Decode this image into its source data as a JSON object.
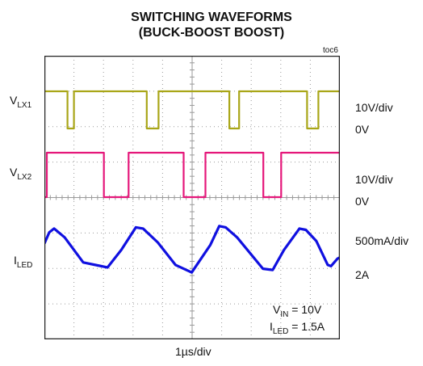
{
  "title_line1": "SWITCHING WAVEFORMS",
  "title_line2": "(BUCK-BOOST BOOST)",
  "figure_ref": "toc6",
  "time_scale": "1µs/div",
  "colors": {
    "vlx1": "#a9a618",
    "vlx2": "#e5177a",
    "iled": "#1010e0",
    "grid": "#9a9a9a",
    "frame": "#222222"
  },
  "chart_data": {
    "type": "line",
    "grid": true,
    "divisions": {
      "x": 10,
      "y": 8
    },
    "xlabel": "1µs/div",
    "series": [
      {
        "name": "VLX1",
        "scale": "10V/div",
        "zero": "0V",
        "points": [
          [
            0.0,
            10
          ],
          [
            2.85,
            10
          ],
          [
            2.85,
            0
          ],
          [
            3.65,
            0
          ],
          [
            3.65,
            10
          ],
          [
            12.65,
            10
          ],
          [
            12.65,
            0
          ],
          [
            14.1,
            0
          ],
          [
            14.1,
            10
          ],
          [
            22.85,
            10
          ],
          [
            22.85,
            0
          ],
          [
            24.05,
            0
          ],
          [
            24.05,
            10
          ],
          [
            32.45,
            10
          ],
          [
            32.45,
            0
          ],
          [
            33.85,
            0
          ],
          [
            33.85,
            10
          ],
          [
            36.5,
            10
          ]
        ]
      },
      {
        "name": "VLX2",
        "scale": "10V/div",
        "zero": "0V",
        "points": [
          [
            0.0,
            0
          ],
          [
            0.3,
            0
          ],
          [
            0.3,
            10
          ],
          [
            7.35,
            10
          ],
          [
            7.35,
            0
          ],
          [
            10.4,
            0
          ],
          [
            10.4,
            10
          ],
          [
            17.2,
            10
          ],
          [
            17.2,
            0
          ],
          [
            19.9,
            0
          ],
          [
            19.9,
            10
          ],
          [
            27.05,
            10
          ],
          [
            27.05,
            0
          ],
          [
            29.25,
            0
          ],
          [
            29.25,
            10
          ],
          [
            36.5,
            10
          ]
        ]
      },
      {
        "name": "ILED",
        "scale": "500mA/div",
        "zero": "2A",
        "points": [
          [
            0.0,
            2.95
          ],
          [
            0.6,
            3.4
          ],
          [
            1.2,
            3.55
          ],
          [
            2.5,
            3.2
          ],
          [
            4.8,
            2.2
          ],
          [
            7.8,
            2.0
          ],
          [
            9.5,
            2.7
          ],
          [
            11.3,
            3.6
          ],
          [
            12.2,
            3.55
          ],
          [
            14.0,
            3.0
          ],
          [
            16.2,
            2.1
          ],
          [
            18.2,
            1.8
          ],
          [
            20.5,
            2.9
          ],
          [
            21.6,
            3.65
          ],
          [
            22.4,
            3.6
          ],
          [
            23.8,
            3.2
          ],
          [
            27.0,
            1.95
          ],
          [
            28.2,
            1.9
          ],
          [
            29.6,
            2.7
          ],
          [
            31.5,
            3.55
          ],
          [
            32.3,
            3.5
          ],
          [
            33.6,
            3.05
          ],
          [
            35.0,
            2.1
          ],
          [
            35.4,
            2.05
          ],
          [
            36.2,
            2.35
          ],
          [
            36.5,
            2.4
          ]
        ]
      }
    ]
  },
  "labels": {
    "vlx1_main": "V",
    "vlx1_sub": "LX1",
    "vlx2_main": "V",
    "vlx2_sub": "LX2",
    "iled_main": "I",
    "iled_sub": "LED"
  },
  "scales": {
    "vlx1_div": "10V/div",
    "vlx1_zero": "0V",
    "vlx2_div": "10V/div",
    "vlx2_zero": "0V",
    "iled_div": "500mA/div",
    "iled_zero": "2A"
  },
  "annotations": {
    "vin_main": "V",
    "vin_sub": "IN",
    "vin_value": " = 10V",
    "iled_main": "I",
    "iled_sub": "LED",
    "iled_value": " = 1.5A"
  }
}
